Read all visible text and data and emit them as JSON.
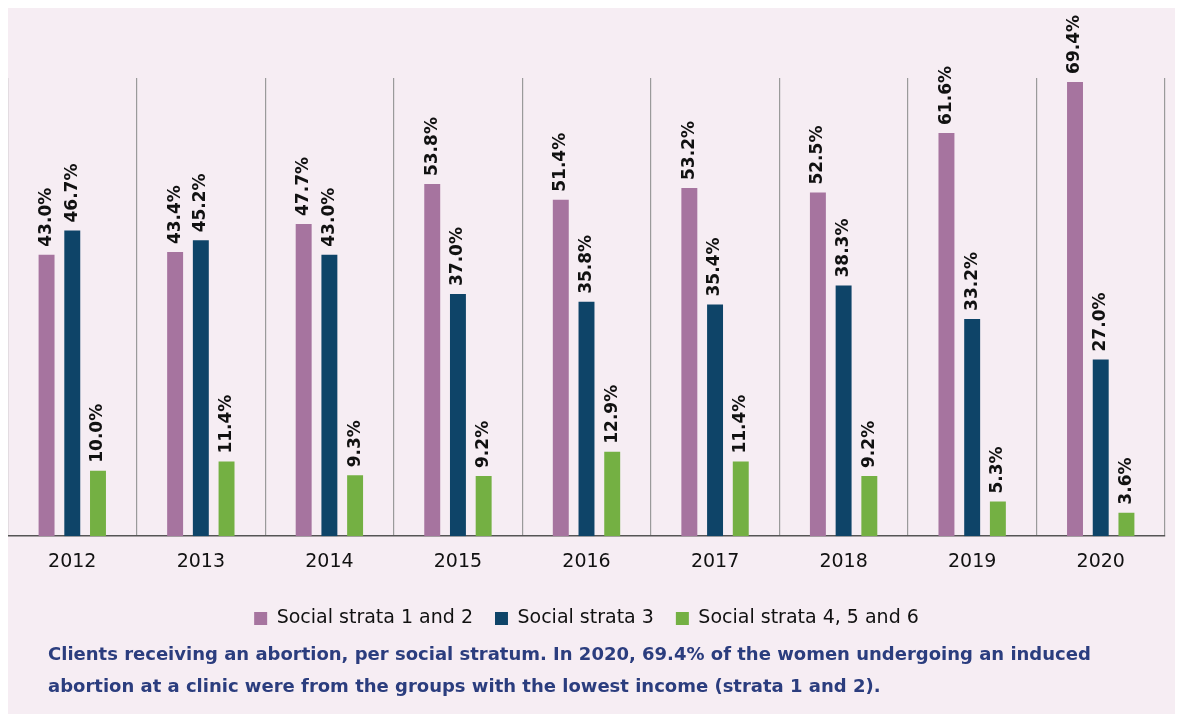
{
  "chart_data": {
    "type": "bar",
    "categories": [
      "2012",
      "2013",
      "2014",
      "2015",
      "2016",
      "2017",
      "2018",
      "2019",
      "2020"
    ],
    "series": [
      {
        "name": "Social strata 1 and 2",
        "color": "#a6749f",
        "values": [
          43.0,
          43.4,
          47.7,
          53.8,
          51.4,
          53.2,
          52.5,
          61.6,
          69.4
        ],
        "value_labels": [
          "43.0%",
          "43.4%",
          "47.7%",
          "53.8%",
          "51.4%",
          "53.2%",
          "52.5%",
          "61.6%",
          "69.4%"
        ]
      },
      {
        "name": "Social strata 3",
        "color": "#0e4468",
        "values": [
          46.7,
          45.2,
          43.0,
          37.0,
          35.8,
          35.4,
          38.3,
          33.2,
          27.0
        ],
        "value_labels": [
          "46.7%",
          "45.2%",
          "43.0%",
          "37.0%",
          "35.8%",
          "35.4%",
          "38.3%",
          "33.2%",
          "27.0%"
        ]
      },
      {
        "name": "Social strata 4, 5 and 6",
        "color": "#74b043",
        "values": [
          10.0,
          11.4,
          9.3,
          9.2,
          12.9,
          11.4,
          9.2,
          5.3,
          3.6
        ],
        "value_labels": [
          "10.0%",
          "11.4%",
          "9.3%",
          "9.2%",
          "12.9%",
          "11.4%",
          "9.2%",
          "5.3%",
          "3.6%"
        ]
      }
    ],
    "grid": "x",
    "legend": "bottom",
    "tick_labels": "x",
    "annotations": [
      "Clients receiving an abortion, per social stratum. In 2020, 69.4% of the women undergoing an induced abortion at a clinic were from the groups with the lowest income (strata 1 and 2)."
    ]
  }
}
